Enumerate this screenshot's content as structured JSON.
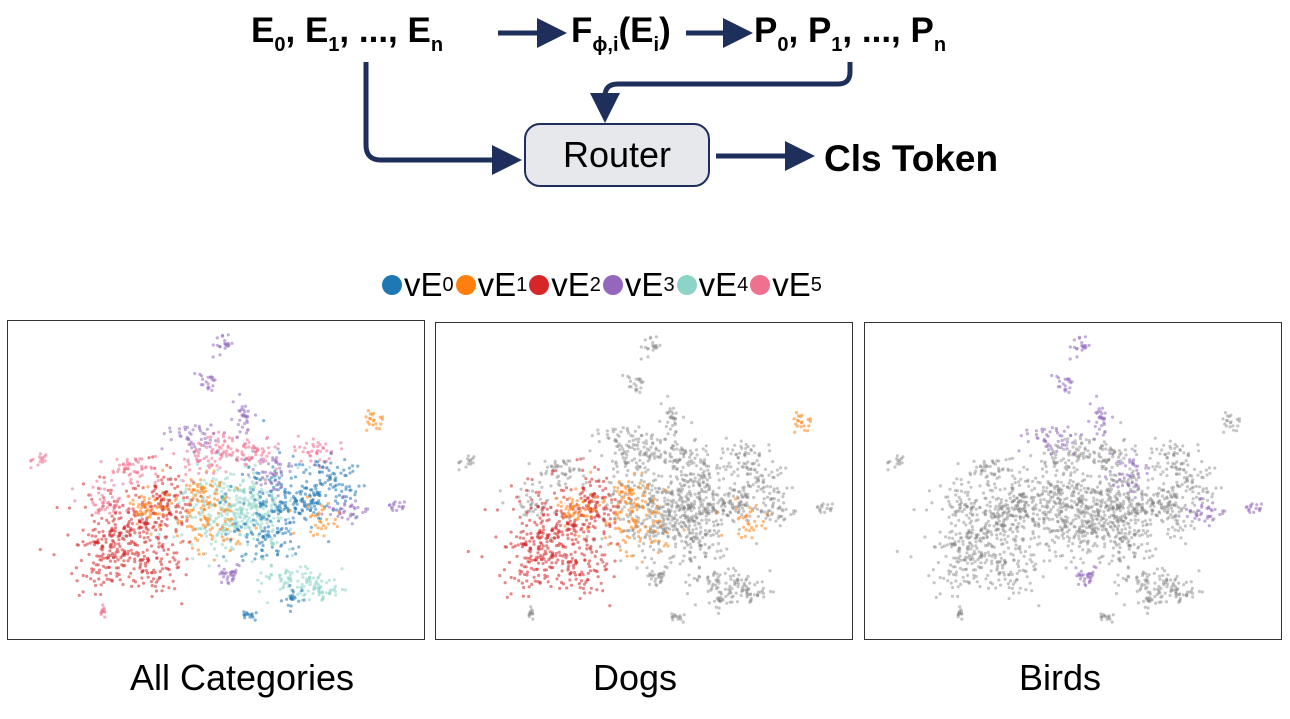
{
  "formula": {
    "inputs": {
      "base": "E",
      "first_sub": "0",
      "sep1": ", ",
      "second_sub": "1",
      "ellipsis": ", ..., ",
      "last_sub": "n"
    },
    "function": {
      "base": "F",
      "sub": "ϕ,i",
      "arg_open": "(E",
      "arg_sub": "i",
      "arg_close": ")"
    },
    "outputs": {
      "base": "P",
      "first_sub": "0",
      "sep1": ", ",
      "second_sub": "1",
      "ellipsis": ", ..., ",
      "last_sub": "n"
    }
  },
  "router": {
    "label": "Router"
  },
  "output": {
    "label": "Cls Token"
  },
  "legend": [
    {
      "base": "vE",
      "sub": "0",
      "color": "#1f77b4"
    },
    {
      "base": "vE",
      "sub": "1",
      "color": "#ff7f0e"
    },
    {
      "base": "vE",
      "sub": "2",
      "color": "#d62728"
    },
    {
      "base": "vE",
      "sub": "3",
      "color": "#9467bd"
    },
    {
      "base": "vE",
      "sub": "4",
      "color": "#8dd3c7"
    },
    {
      "base": "vE",
      "sub": "5",
      "color": "#f07090"
    }
  ],
  "panels": [
    {
      "caption": "All Categories",
      "highlight": "all"
    },
    {
      "caption": "Dogs",
      "highlight": [
        "vE2",
        "vE1"
      ]
    },
    {
      "caption": "Birds",
      "highlight": [
        "vE3"
      ]
    }
  ],
  "colors": {
    "arrow": "#1f2f5c",
    "background_points": "#808080",
    "router_fill": "#e6e8ec"
  }
}
